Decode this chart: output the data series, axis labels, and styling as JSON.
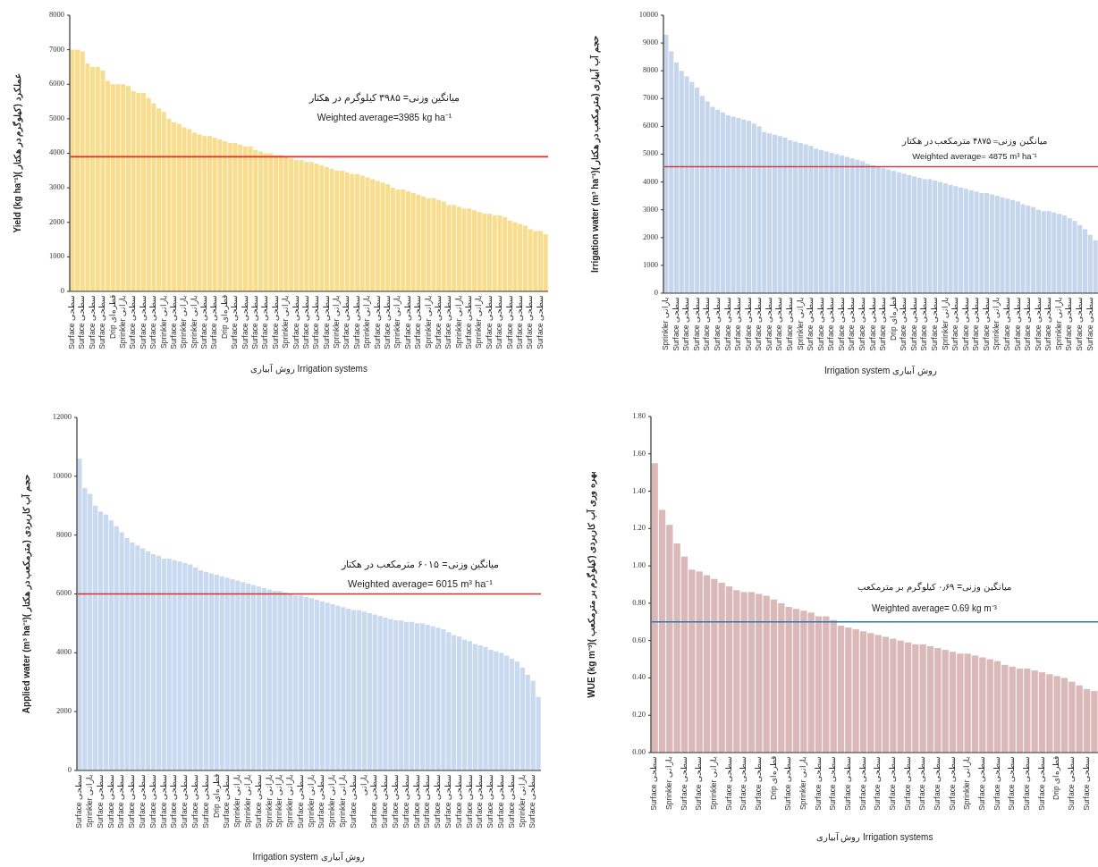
{
  "chart_data": [
    {
      "type": "bar",
      "color": "#f8dd8e",
      "ylabel": "Yield (kg ha⁻¹)( عملکرد (کیلوگرم در هکتار",
      "xlabel": "روش آبیاری Irrigation systems",
      "ylim": [
        0,
        8000
      ],
      "yticks": [
        0,
        1000,
        2000,
        3000,
        4000,
        5000,
        6000,
        7000,
        8000
      ],
      "ref_lines": [
        {
          "axis": "y",
          "value": 3900,
          "color": "#d6312b"
        }
      ],
      "annotations": [
        "میانگین وزنی= ۳۹۸۵ کیلوگرم در هکتار",
        "Weighted average=3985 kg ha⁻¹"
      ],
      "categories": [
        "Surface سطحی",
        null,
        "Surface سطحی",
        null,
        "Surface سطحی",
        null,
        "Surface سطحی",
        null,
        "Drip قطره‌ای",
        null,
        "Sprinkler بارانی",
        null,
        "Surface سطحی",
        null,
        "Surface سطحی",
        null,
        "Surface سطحی",
        null,
        "Sprinkler بارانی",
        null,
        "Surface سطحی",
        null,
        "Sprinkler بارانی",
        null,
        "Sprinkler بارانی",
        null,
        "Surface سطحی",
        null,
        "Surface سطحی",
        null,
        "Drip قطره‌ای",
        null,
        "Surface سطحی",
        null,
        "Surface سطحی",
        null,
        "Surface سطحی",
        null,
        "Surface سطحی",
        null,
        "Surface سطحی",
        null,
        "Sprinkler بارانی",
        null,
        "Surface سطحی",
        null,
        "Surface سطحی",
        null,
        "Surface سطحی",
        null,
        "Surface سطحی",
        null,
        "Sprinkler بارانی",
        null,
        "Surface سطحی",
        null,
        "Surface سطحی",
        null,
        "Sprinkler بارانی",
        null,
        "Surface سطحی",
        null,
        "Surface سطحی",
        null,
        "Sprinkler بارانی",
        null,
        "Surface سطحی",
        null,
        "Surface سطحی",
        null,
        "Sprinkler بارانی",
        null,
        "Surface سطحی",
        null,
        "Surface سطحی",
        null,
        "Sprinkler بارانی",
        null,
        "Surface سطحی",
        null,
        "Sprinkler بارانی",
        null,
        "Surface سطحی",
        null,
        "Surface سطحی",
        null,
        "Surface سطحی",
        null,
        "Surface سطحی",
        null,
        "Surface سطحی",
        null,
        "Surface سطحی",
        null
      ],
      "values": [
        7000,
        7000,
        6950,
        6600,
        6500,
        6500,
        6400,
        6100,
        6000,
        6000,
        6000,
        5950,
        5800,
        5750,
        5750,
        5600,
        5450,
        5300,
        5200,
        5000,
        4900,
        4850,
        4750,
        4700,
        4600,
        4550,
        4500,
        4500,
        4450,
        4400,
        4350,
        4300,
        4300,
        4250,
        4200,
        4200,
        4100,
        4050,
        4000,
        4000,
        3950,
        3950,
        3900,
        3850,
        3800,
        3800,
        3750,
        3750,
        3700,
        3650,
        3600,
        3550,
        3500,
        3500,
        3450,
        3400,
        3400,
        3350,
        3300,
        3250,
        3200,
        3150,
        3100,
        3000,
        2950,
        2950,
        2900,
        2850,
        2800,
        2750,
        2700,
        2700,
        2650,
        2600,
        2500,
        2500,
        2450,
        2400,
        2400,
        2350,
        2300,
        2250,
        2250,
        2200,
        2200,
        2150,
        2050,
        2000,
        1950,
        1900,
        1800,
        1750,
        1750,
        1650
      ]
    },
    {
      "type": "bar",
      "color": "#c6d6ec",
      "ylabel": "Irrigation water (m³ ha⁻¹)( حجم آب آبیاری (مترمکعب در هکتار",
      "xlabel": "Irrigation system روش آبیاری",
      "ylim": [
        0,
        10000
      ],
      "yticks": [
        0,
        1000,
        2000,
        3000,
        4000,
        5000,
        6000,
        7000,
        8000,
        9000,
        10000
      ],
      "ref_lines": [
        {
          "axis": "y",
          "value": 4550,
          "color": "#c8404a"
        }
      ],
      "annotations": [
        "میانگین وزنی= ۴۸۷۵ مترمکعب در هکتار",
        "Weighted average= 4875 m³ ha⁻¹"
      ],
      "categories": [
        "Sprinkler بارانی",
        null,
        "Surface سطحی",
        null,
        "Surface سطحی",
        null,
        "Surface سطحی",
        null,
        "Surface سطحی",
        null,
        "Surface سطحی",
        null,
        "Surface سطحی",
        null,
        "Surface سطحی",
        null,
        "Surface سطحی",
        null,
        "Surface سطحی",
        null,
        "Surface سطحی",
        null,
        "Surface سطحی",
        null,
        "Surface سطحی",
        null,
        "Sprinkler بارانی",
        null,
        "Surface سطحی",
        null,
        "Surface سطحی",
        null,
        "Surface سطحی",
        null,
        "Surface سطحی",
        null,
        "Surface سطحی",
        null,
        "Surface سطحی",
        null,
        "Surface سطحی",
        null,
        "Surface سطحی",
        null,
        "Drip قطره‌ای",
        null,
        "Surface سطحی",
        null,
        "Surface سطحی",
        null,
        "Surface سطحی",
        null,
        "Surface سطحی",
        null,
        "Sprinkler بارانی",
        null,
        "Surface سطحی",
        null,
        "Surface سطحی",
        null,
        "Surface سطحی",
        null,
        "Surface سطحی",
        null,
        "Sprinkler بارانی",
        null,
        "Surface سطحی",
        null,
        "Surface سطحی",
        null,
        "Surface سطحی",
        null,
        "Surface سطحی",
        null,
        "Surface سطحی",
        null,
        "Sprinkler بارانی",
        null,
        "Surface سطحی",
        null,
        "Surface سطحی",
        null,
        "Surface سطحی",
        null
      ],
      "values": [
        9300,
        8700,
        8300,
        8000,
        7800,
        7600,
        7400,
        7100,
        6900,
        6700,
        6600,
        6500,
        6400,
        6350,
        6300,
        6250,
        6200,
        6100,
        6000,
        5800,
        5750,
        5700,
        5650,
        5600,
        5500,
        5450,
        5400,
        5350,
        5300,
        5200,
        5150,
        5100,
        5050,
        5000,
        4950,
        4900,
        4850,
        4800,
        4750,
        4650,
        4600,
        4550,
        4500,
        4450,
        4400,
        4350,
        4300,
        4250,
        4200,
        4150,
        4100,
        4100,
        4050,
        4000,
        3950,
        3900,
        3850,
        3800,
        3750,
        3700,
        3650,
        3600,
        3600,
        3550,
        3500,
        3450,
        3400,
        3350,
        3300,
        3200,
        3150,
        3100,
        3000,
        2950,
        2950,
        2900,
        2850,
        2800,
        2700,
        2600,
        2450,
        2300,
        2100,
        1900
      ]
    },
    {
      "type": "bar",
      "color": "#c8d9f0",
      "ylabel": "Applied water (m³ ha⁻¹)( حجم آب کاربردی (مترمکعب در هکتار",
      "xlabel": "Irrigation system روش آبیاری",
      "ylim": [
        0,
        12000
      ],
      "yticks": [
        0,
        2000,
        4000,
        6000,
        8000,
        10000,
        12000
      ],
      "ref_lines": [
        {
          "axis": "y",
          "value": 6000,
          "color": "#d6312b"
        }
      ],
      "annotations": [
        "میانگین وزنی= ۶۰۱۵ مترمکعب در هکتار",
        "Weighted average= 6015 m³ ha⁻¹"
      ],
      "categories": [
        "Surface سطحی",
        null,
        "Sprinkler بارانی",
        null,
        "Surface سطحی",
        null,
        "Surface سطحی",
        null,
        "Surface سطحی",
        null,
        "Surface سطحی",
        null,
        "Surface سطحی",
        null,
        "Surface سطحی",
        null,
        "Surface سطحی",
        null,
        "Surface سطحی",
        null,
        "Surface سطحی",
        null,
        "Surface سطحی",
        null,
        "Surface سطحی",
        null,
        "Drip قطره‌ای",
        null,
        "Surface سطحی",
        null,
        "Sprinkler بارانی",
        null,
        "Sprinkler بارانی",
        null,
        "Surface سطحی",
        null,
        "Sprinkler بارانی",
        null,
        "Sprinkler بارانی",
        null,
        "Sprinkler بارانی",
        null,
        "Surface سطحی",
        null,
        "Sprinkler بارانی",
        null,
        "Surface سطحی",
        null,
        "Sprinkler بارانی",
        null,
        "Sprinkler بارانی",
        null,
        "Surface سطحی",
        null,
        "بارانی",
        null,
        "Surface سطحی",
        null,
        "Surface سطحی",
        null,
        "Surface سطحی",
        null,
        "Surface سطحی",
        null,
        "Surface سطحی",
        null,
        "Surface سطحی",
        null,
        "Surface سطحی",
        null,
        "Surface سطحی",
        null,
        "Surface سطحی",
        null,
        "Surface سطحی",
        null,
        "Surface سطحی",
        null,
        "Surface سطحی",
        null,
        "Surface سطحی",
        null,
        "Surface سطحی",
        null,
        "Sprinkler بارانی",
        null,
        "Surface سطحی",
        null
      ],
      "values": [
        10600,
        9600,
        9400,
        9000,
        8800,
        8700,
        8500,
        8300,
        8100,
        7900,
        7750,
        7650,
        7550,
        7450,
        7350,
        7300,
        7200,
        7200,
        7150,
        7100,
        7050,
        7000,
        6900,
        6800,
        6750,
        6700,
        6650,
        6600,
        6550,
        6500,
        6450,
        6400,
        6350,
        6300,
        6250,
        6200,
        6150,
        6100,
        6100,
        6050,
        6000,
        5950,
        5950,
        5900,
        5850,
        5800,
        5750,
        5700,
        5650,
        5600,
        5550,
        5500,
        5450,
        5450,
        5400,
        5350,
        5300,
        5250,
        5200,
        5150,
        5100,
        5100,
        5050,
        5050,
        5000,
        5000,
        4950,
        4900,
        4850,
        4800,
        4700,
        4600,
        4550,
        4450,
        4400,
        4300,
        4250,
        4200,
        4100,
        4050,
        4000,
        3900,
        3800,
        3700,
        3500,
        3250,
        3050,
        2500
      ]
    },
    {
      "type": "bar",
      "color": "#dcb9b9",
      "ylabel": "WUE (kg m⁻³)( بهره وری آب کاربردی (کیلوگرم بر مترمکعب",
      "xlabel": "روش آبیاری Irrigation systems",
      "ylim": [
        0,
        1.8
      ],
      "yticks": [
        {
          "value": 0,
          "label": "0.00"
        },
        {
          "value": 0.2,
          "label": "0.20"
        },
        {
          "value": 0.4,
          "label": "0.40"
        },
        {
          "value": 0.6,
          "label": "0.60"
        },
        {
          "value": 0.8,
          "label": "0.80"
        },
        {
          "value": 1,
          "label": "1.00"
        },
        {
          "value": 1.2,
          "label": "1.20"
        },
        {
          "value": 1.4,
          "label": "1.40"
        },
        {
          "value": 1.6,
          "label": "1.60"
        },
        {
          "value": 1.8,
          "label": "1.80"
        }
      ],
      "ref_lines": [
        {
          "axis": "y",
          "value": 0.7,
          "color": "#2e75b6"
        }
      ],
      "annotations": [
        "میانگین وزنی= ۰٫۶۹ کیلوگرم بر مترمکعب",
        "Weighted average= 0.69 kg m⁻³"
      ],
      "categories": [
        "Surface سطحی",
        null,
        "Sprinkler بارانی",
        null,
        "Surface سطحی",
        null,
        "Surface سطحی",
        null,
        "Sprinkler بارانی",
        null,
        "Surface سطحی",
        null,
        "Surface سطحی",
        null,
        "Surface سطحی",
        null,
        "Drip قطره‌ای",
        null,
        "Surface سطحی",
        null,
        "Sprinkler بارانی",
        null,
        "Surface سطحی",
        null,
        "Surface سطحی",
        null,
        "Surface سطحی",
        null,
        "Surface سطحی",
        null,
        "Surface سطحی",
        null,
        "Surface سطحی",
        null,
        "Surface سطحی",
        null,
        "Surface سطحی",
        null,
        "Surface سطحی",
        null,
        "Surface سطحی",
        null,
        "Sprinkler بارانی",
        null,
        "Surface سطحی",
        null,
        "Surface سطحی",
        null,
        "Surface سطحی",
        null,
        "Surface سطحی",
        null,
        "Surface سطحی",
        null,
        "Drip قطره‌ای",
        null,
        "Surface سطحی",
        null,
        "Surface سطحی",
        null
      ],
      "values": [
        1.55,
        1.3,
        1.22,
        1.12,
        1.05,
        0.98,
        0.97,
        0.95,
        0.93,
        0.91,
        0.89,
        0.87,
        0.86,
        0.86,
        0.85,
        0.84,
        0.82,
        0.8,
        0.78,
        0.77,
        0.76,
        0.75,
        0.73,
        0.73,
        0.71,
        0.68,
        0.67,
        0.66,
        0.65,
        0.64,
        0.63,
        0.62,
        0.61,
        0.6,
        0.59,
        0.58,
        0.58,
        0.57,
        0.56,
        0.55,
        0.54,
        0.53,
        0.53,
        0.52,
        0.51,
        0.5,
        0.49,
        0.47,
        0.46,
        0.45,
        0.45,
        0.44,
        0.43,
        0.42,
        0.41,
        0.4,
        0.38,
        0.36,
        0.34,
        0.33
      ]
    }
  ]
}
